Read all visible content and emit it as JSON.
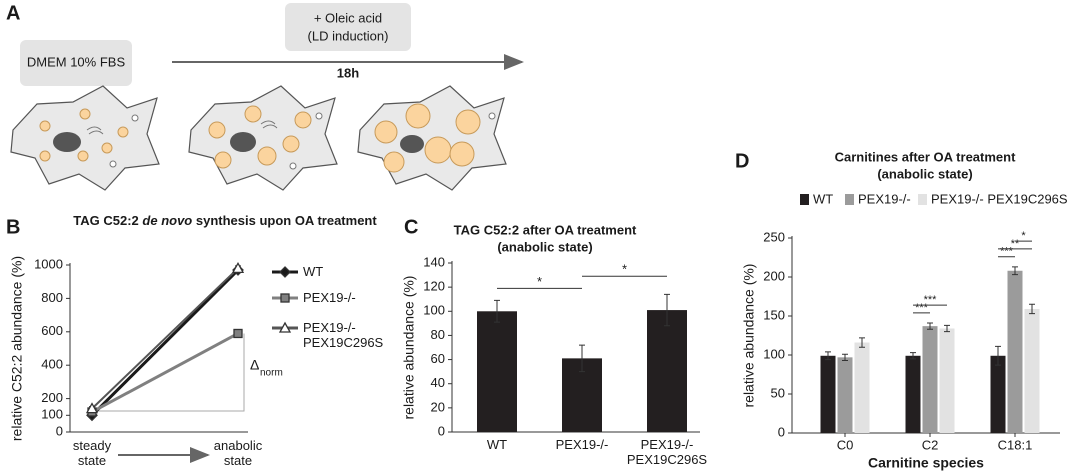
{
  "panel_a": {
    "label": "A",
    "start_medium": "DMEM 10% FBS",
    "treatment": [
      "+ Oleic acid",
      "(LD induction)"
    ],
    "duration": "18h"
  },
  "chart_data": [
    {
      "panel": "B",
      "type": "line",
      "title": [
        "TAG C52:2 ",
        "de novo",
        " synthesis upon OA treatment"
      ],
      "categories": [
        "steady state",
        "anabolic state"
      ],
      "y_label": "relative C52:2 abundance (%)",
      "ylim": [
        0,
        1000
      ],
      "yticks": [
        0,
        100,
        200,
        400,
        600,
        800,
        1000
      ],
      "legend": "right",
      "annotation": {
        "symbol": "Δ",
        "subscript": "norm"
      },
      "series": [
        {
          "name": "WT",
          "color": "#1a1a1a",
          "marker": "diamond",
          "values": [
            100,
            970
          ],
          "errors": [
            12,
            15
          ]
        },
        {
          "name": "PEX19-/-",
          "color": "#808080",
          "marker": "square",
          "values": [
            120,
            590
          ],
          "errors": [
            12,
            12
          ]
        },
        {
          "name": "PEX19-/- PEX19C296S",
          "color": "#ffffff",
          "marker": "triangle",
          "values": [
            140,
            980
          ],
          "errors": [
            12,
            15
          ]
        }
      ]
    },
    {
      "panel": "C",
      "type": "bar",
      "title": [
        "TAG C52:2 after OA treatment",
        "(anabolic state)"
      ],
      "categories": [
        "WT",
        "PEX19-/-",
        "PEX19-/- PEX19C296S"
      ],
      "values": [
        100,
        61,
        101
      ],
      "errors": [
        9,
        11,
        13
      ],
      "color": "#231f20",
      "y_label": "relative abundance (%)",
      "ylim": [
        0,
        140
      ],
      "yticks": [
        0,
        20,
        40,
        60,
        80,
        100,
        120,
        140
      ],
      "comparisons": [
        {
          "label": "*",
          "groups": [
            0,
            1
          ]
        },
        {
          "label": "*",
          "groups": [
            1,
            2
          ]
        }
      ]
    },
    {
      "panel": "D",
      "type": "grouped_bar",
      "title": [
        "Carnitines after OA treatment",
        "(anabolic state)"
      ],
      "categories": [
        "C0",
        "C2",
        "C18:1"
      ],
      "x_label": "Carnitine species",
      "y_label": "relative abundance (%)",
      "ylim": [
        0,
        250
      ],
      "yticks": [
        0,
        50,
        100,
        150,
        200,
        250
      ],
      "legend": "top",
      "series": [
        {
          "name": "WT",
          "color": "#231f20",
          "values": [
            99,
            99,
            99
          ],
          "errors": [
            5,
            4,
            12
          ]
        },
        {
          "name": "PEX19-/-",
          "color": "#9b9b9b",
          "values": [
            97,
            137,
            208
          ],
          "errors": [
            4,
            4,
            5
          ]
        },
        {
          "name": "PEX19-/- PEX19C296S",
          "color": "#e2e2e2",
          "values": [
            116,
            134,
            159
          ],
          "errors": [
            6,
            4,
            6
          ]
        }
      ],
      "comparisons": [
        {
          "label": "***",
          "category": 1,
          "groups": [
            0,
            1
          ]
        },
        {
          "label": "***",
          "category": 1,
          "groups": [
            0,
            2
          ]
        },
        {
          "label": "***",
          "category": 2,
          "groups": [
            0,
            1
          ]
        },
        {
          "label": "**",
          "category": 2,
          "groups": [
            0,
            2
          ]
        },
        {
          "label": "*",
          "category": 2,
          "groups": [
            1,
            2
          ]
        }
      ]
    }
  ]
}
